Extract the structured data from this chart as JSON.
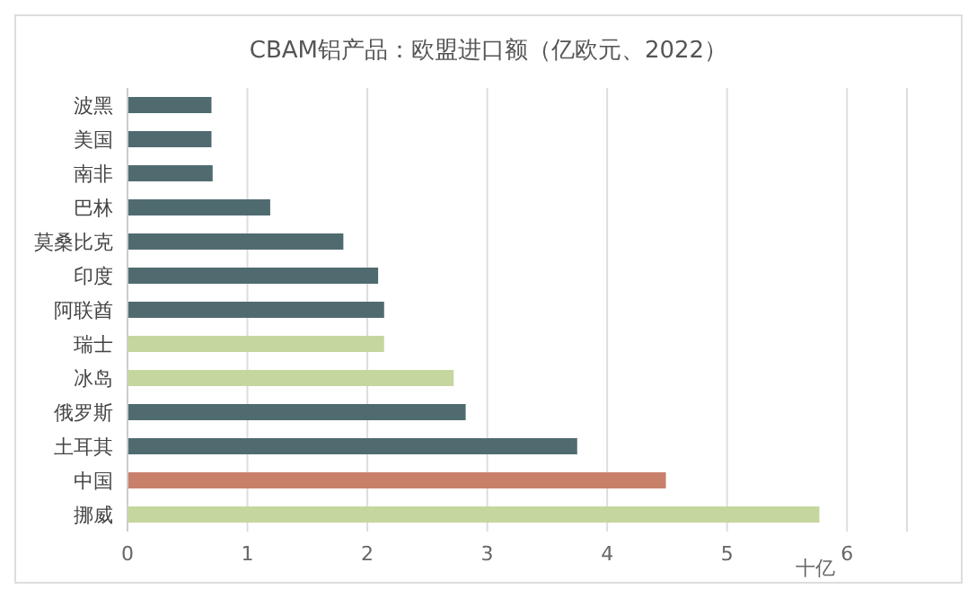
{
  "chart_data": {
    "type": "bar",
    "orientation": "horizontal",
    "title": "CBAM铝产品：欧盟进口额（亿欧元、2022）",
    "xlabel": "十亿",
    "categories": [
      "波黑",
      "美国",
      "南非",
      "巴林",
      "莫桑比克",
      "印度",
      "阿联酋",
      "瑞士",
      "冰岛",
      "俄罗斯",
      "土耳其",
      "中国",
      "挪威"
    ],
    "values": [
      0.7,
      0.7,
      0.71,
      1.19,
      1.8,
      2.09,
      2.14,
      2.14,
      2.72,
      2.82,
      3.75,
      4.49,
      5.77
    ],
    "colors": [
      "#4f6b70",
      "#4f6b70",
      "#4f6b70",
      "#4f6b70",
      "#4f6b70",
      "#4f6b70",
      "#4f6b70",
      "#c5d79e",
      "#c5d79e",
      "#4f6b70",
      "#4f6b70",
      "#c8806a",
      "#c5d79e"
    ],
    "xlim": [
      0,
      6.5
    ],
    "xticks": [
      0,
      1,
      2,
      3,
      4,
      5,
      6
    ],
    "grid": "x",
    "legend": false
  }
}
